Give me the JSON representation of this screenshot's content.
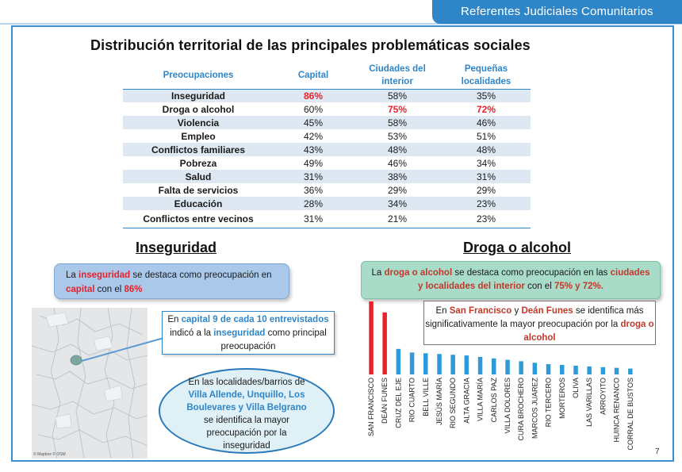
{
  "header": {
    "title": "Referentes Judiciales Comunitarios"
  },
  "slide": {
    "title": "Distribución territorial de las principales problemáticas sociales",
    "page_number": "7"
  },
  "table": {
    "columns": [
      "Preocupaciones",
      "Capital",
      "Ciudades del interior",
      "Pequeñas localidades"
    ],
    "column_lines": [
      [
        "Preocupaciones"
      ],
      [
        "Capital"
      ],
      [
        "Ciudades del",
        "interior"
      ],
      [
        "Pequeñas",
        "localidades"
      ]
    ],
    "rows": [
      {
        "label": "Inseguridad",
        "capital": "86%",
        "ciudades": "58%",
        "pequenas": "35%",
        "highlight": [
          "capital"
        ]
      },
      {
        "label": "Droga o alcohol",
        "capital": "60%",
        "ciudades": "75%",
        "pequenas": "72%",
        "highlight": [
          "ciudades",
          "pequenas"
        ]
      },
      {
        "label": "Violencia",
        "capital": "45%",
        "ciudades": "58%",
        "pequenas": "46%",
        "highlight": []
      },
      {
        "label": "Empleo",
        "capital": "42%",
        "ciudades": "53%",
        "pequenas": "51%",
        "highlight": []
      },
      {
        "label": "Conflictos familiares",
        "capital": "43%",
        "ciudades": "48%",
        "pequenas": "48%",
        "highlight": []
      },
      {
        "label": "Pobreza",
        "capital": "49%",
        "ciudades": "46%",
        "pequenas": "34%",
        "highlight": []
      },
      {
        "label": "Salud",
        "capital": "31%",
        "ciudades": "38%",
        "pequenas": "31%",
        "highlight": []
      },
      {
        "label": "Falta de servicios",
        "capital": "36%",
        "ciudades": "29%",
        "pequenas": "29%",
        "highlight": []
      },
      {
        "label": "Educación",
        "capital": "28%",
        "ciudades": "34%",
        "pequenas": "23%",
        "highlight": []
      },
      {
        "label": "Conflictos entre vecinos",
        "capital": "31%",
        "ciudades": "21%",
        "pequenas": "23%",
        "highlight": []
      }
    ]
  },
  "inseguridad": {
    "heading": "Inseguridad",
    "callout": {
      "p1": "La ",
      "k1": "inseguridad",
      "p2": " se  destaca como preocupación en ",
      "k2": "capital",
      "p3": " con el  ",
      "k3": "86%"
    },
    "capital_box": {
      "p1": "En ",
      "k1": "capital 9 de cada 10 entrevistados",
      "p2": " indicó a la ",
      "k2": "inseguridad",
      "p3": " como principal preocupación"
    },
    "ellipse": {
      "p1": "En las localidades/barrios de ",
      "k1": "Villa Allende, Unquillo, Los Boulevares y Villa Belgrano",
      "p2": " se identifica la mayor preocupación por la inseguridad"
    },
    "map_copyright": "© Mapbox © OSM"
  },
  "droga": {
    "heading": "Droga o alcohol",
    "callout": {
      "p1": "La ",
      "k1": "droga o alcohol",
      "p2": " se destaca  como preocupación en  las ",
      "k2": "ciudades y localidades del interior",
      "p3": " con el ",
      "k3": "75% y 72%."
    },
    "sf_box": {
      "p1": "En ",
      "k1": "San Francisco",
      "p2": " y ",
      "k2": "Deán Funes",
      "p3": "  se identifica más significativamente la mayor preocupación por la ",
      "k3": "droga o alcohol"
    }
  },
  "colors": {
    "accent": "#2e86c9",
    "highlight": "#e8222a",
    "bar_red": "#e8222a",
    "bar_blue": "#2e9ad8"
  },
  "chart_data": {
    "type": "bar",
    "title": "",
    "xlabel": "",
    "ylabel": "",
    "values_are_estimates_relative_scale": true,
    "categories": [
      "SAN FRANCISCO",
      "DEÁN FUNES",
      "CRUZ DEL EJE",
      "RIO CUARTO",
      "BELL VILLE",
      "JESÚS MARÍA",
      "RIO SEGUNDO",
      "ALTA GRACIA",
      "VILLA MARÍA",
      "CARLOS PAZ",
      "VILLA DOLORES",
      "CURA BROCHERO",
      "MARCOS JUAREZ",
      "RIO TERCERO",
      "MORTEROS",
      "OLIVA",
      "LAS VARILLAS",
      "ARROYITO",
      "HUINCA RENANCO",
      "CORRAL DE BUSTOS"
    ],
    "values": [
      100,
      85,
      35,
      30,
      29,
      28,
      27,
      26,
      24,
      22,
      20,
      18,
      16,
      14,
      13,
      12,
      11,
      10,
      9,
      8
    ],
    "highlighted": [
      "SAN FRANCISCO",
      "DEÁN FUNES"
    ],
    "ylim": [
      0,
      100
    ],
    "grid": false,
    "legend": "none"
  }
}
